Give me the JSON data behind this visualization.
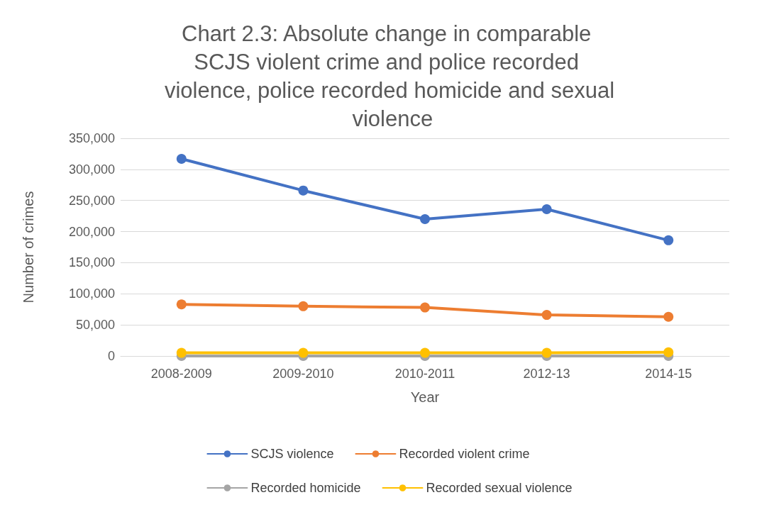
{
  "chart_data": {
    "type": "line",
    "title": "Chart 2.3: Absolute change in comparable SCJS violent crime and police recorded violence, police recorded homicide and sexual violence",
    "xlabel": "Year",
    "ylabel": "Number of crimes",
    "categories": [
      "2008-2009",
      "2009-2010",
      "2010-2011",
      "2012-13",
      "2014-15"
    ],
    "series": [
      {
        "name": "SCJS violence",
        "color": "#4472c4",
        "values": [
          317000,
          266000,
          220000,
          236000,
          186000
        ]
      },
      {
        "name": "Recorded violent crime",
        "color": "#ed7d31",
        "values": [
          83000,
          80000,
          78000,
          66000,
          63000
        ]
      },
      {
        "name": "Recorded homicide",
        "color": "#a5a5a5",
        "values": [
          0,
          0,
          0,
          0,
          0
        ]
      },
      {
        "name": "Recorded sexual violence",
        "color": "#ffc000",
        "values": [
          5000,
          5000,
          5000,
          5000,
          6000
        ]
      }
    ],
    "ylim": [
      0,
      350000
    ],
    "yticks": [
      0,
      {
        "value": 50000,
        "label": "50,000"
      },
      {
        "value": 100000,
        "label": "100,000"
      },
      {
        "value": 150000,
        "label": "150,000"
      },
      {
        "value": 200000,
        "label": "200,000"
      },
      {
        "value": 250000,
        "label": "250,000"
      },
      {
        "value": 300000,
        "label": "300,000"
      },
      {
        "value": 350000,
        "label": "350,000"
      }
    ],
    "grid": "y",
    "legend": "bottom",
    "marker": "circle",
    "line_style": "solid"
  }
}
